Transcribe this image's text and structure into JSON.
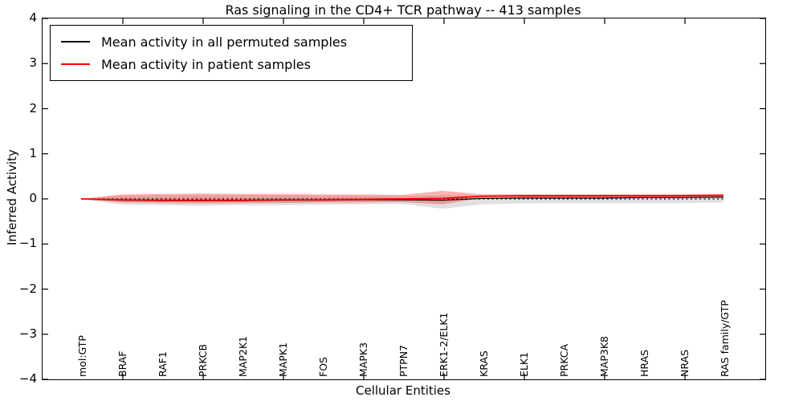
{
  "chart_data": {
    "type": "line",
    "title": "Ras signaling in the CD4+ TCR pathway -- 413 samples",
    "xlabel": "Cellular Entities",
    "ylabel": "Inferred Activity",
    "ylim": [
      -4,
      4
    ],
    "yticks": [
      4,
      3,
      2,
      1,
      0,
      -1,
      -2,
      -3,
      -4
    ],
    "grid": false,
    "legend_position": "upper left",
    "categories": [
      "mol:GTP",
      "BRAF",
      "RAF1",
      "PRKCB",
      "MAP2K1",
      "MAPK1",
      "FOS",
      "MAPK3",
      "PTPN7",
      "ERK1-2/ELK1",
      "KRAS",
      "ELK1",
      "PRKCA",
      "MAP3K8",
      "HRAS",
      "NRAS",
      "RAS family/GTP"
    ],
    "series": [
      {
        "name": "Mean activity in all permuted samples",
        "color": "#000000",
        "values": [
          0.0,
          -0.03,
          -0.04,
          -0.04,
          -0.04,
          -0.03,
          -0.03,
          -0.02,
          -0.02,
          -0.03,
          0.01,
          0.02,
          0.02,
          0.02,
          0.03,
          0.03,
          0.04
        ],
        "band": {
          "color": "#999999",
          "opacity": 0.3,
          "upper": [
            0.0,
            0.07,
            0.08,
            0.08,
            0.08,
            0.08,
            0.07,
            0.07,
            0.06,
            0.08,
            0.07,
            0.07,
            0.07,
            0.07,
            0.07,
            0.07,
            0.08
          ],
          "lower": [
            0.0,
            -0.13,
            -0.14,
            -0.15,
            -0.14,
            -0.14,
            -0.13,
            -0.12,
            -0.11,
            -0.22,
            -0.12,
            -0.1,
            -0.09,
            -0.09,
            -0.09,
            -0.09,
            -0.08
          ]
        }
      },
      {
        "name": "Mean activity in patient samples",
        "color": "#ff0000",
        "values": [
          0.0,
          -0.02,
          -0.03,
          -0.03,
          -0.03,
          -0.02,
          -0.02,
          -0.01,
          0.0,
          0.01,
          0.06,
          0.07,
          0.07,
          0.07,
          0.07,
          0.07,
          0.08
        ],
        "band": {
          "color": "#ff0000",
          "opacity": 0.3,
          "upper": [
            0.0,
            0.1,
            0.11,
            0.12,
            0.11,
            0.11,
            0.1,
            0.1,
            0.09,
            0.18,
            0.1,
            0.1,
            0.1,
            0.1,
            0.1,
            0.1,
            0.11
          ],
          "lower": [
            0.0,
            -0.08,
            -0.09,
            -0.1,
            -0.09,
            -0.09,
            -0.08,
            -0.08,
            -0.07,
            -0.12,
            0.02,
            0.03,
            0.03,
            0.03,
            0.03,
            0.03,
            0.04
          ]
        }
      }
    ],
    "reference_line": {
      "y": 0,
      "style": "dashed",
      "color": "#000000"
    }
  }
}
